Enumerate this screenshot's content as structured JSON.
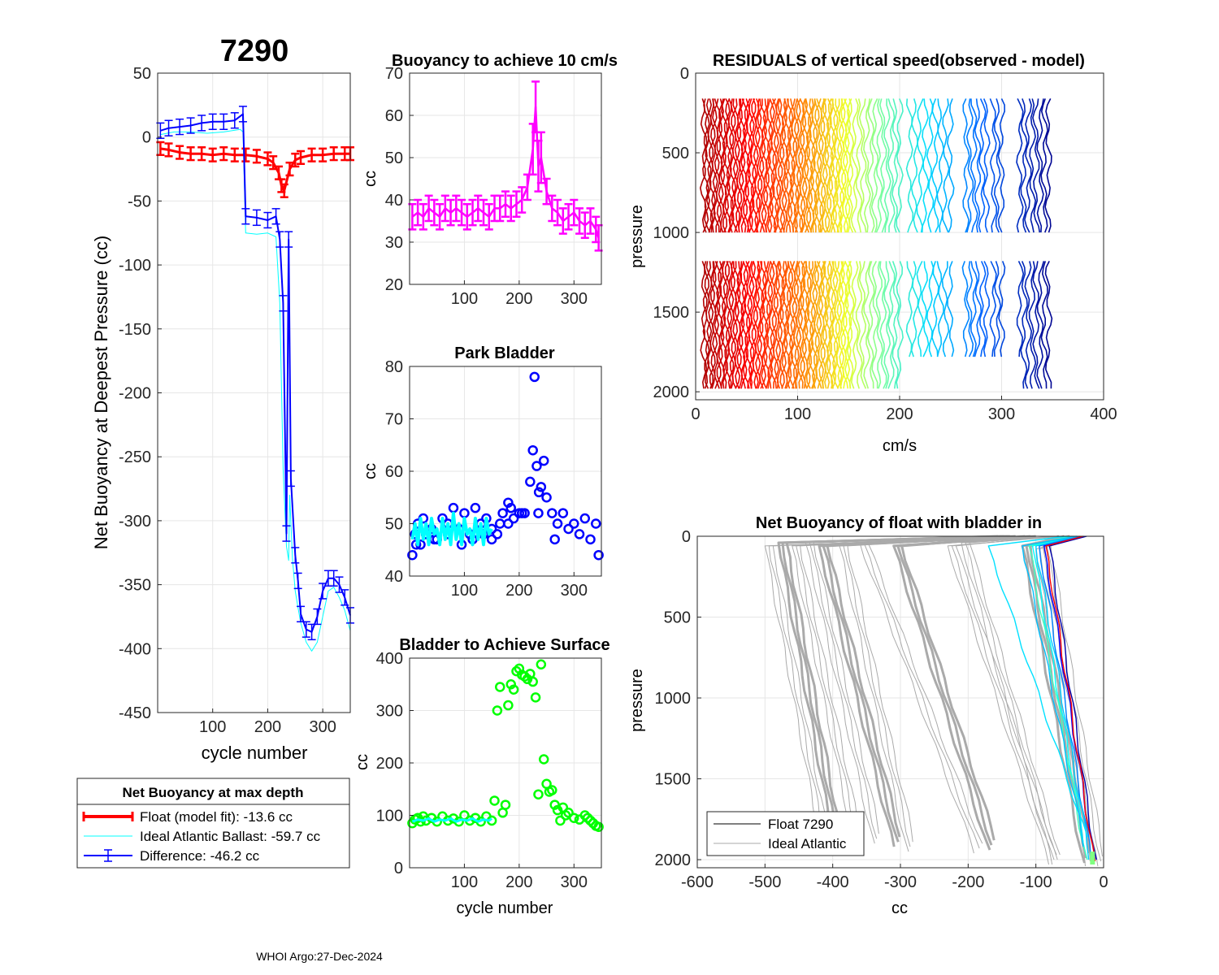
{
  "figure": {
    "float_id": "7290",
    "footer": "WHOI Argo:27-Dec-2024"
  },
  "colors": {
    "float_fit": "#ff0000",
    "ideal": "#00ffff",
    "difference": "#0000ff",
    "buoyancy": "#ff00ff",
    "park": "#0000ff",
    "bladder": "#00ff00",
    "ideal_gray": "#aaaaaa",
    "float_black": "#000000"
  },
  "chart_data": [
    {
      "id": "net-buoyancy",
      "type": "line",
      "title": "7290",
      "xlabel": "cycle number",
      "ylabel": "Net Buoyancy at Deepest Pressure (cc)",
      "xlim": [
        0,
        350
      ],
      "ylim": [
        -450,
        50
      ],
      "xticks": [
        100,
        200,
        300
      ],
      "yticks": [
        50,
        0,
        -50,
        -100,
        -150,
        -200,
        -250,
        -300,
        -350,
        -400,
        -450
      ],
      "grid": true,
      "legend": {
        "title": "Net Buoyancy at max depth",
        "entries": [
          "Float (model fit): -13.6 cc",
          "Ideal Atlantic Ballast: -59.7 cc",
          "Difference: -46.2 cc"
        ]
      },
      "series": [
        {
          "name": "Float (model fit)",
          "color": "#ff0000",
          "errorbars": true,
          "x": [
            5,
            20,
            40,
            60,
            80,
            100,
            120,
            140,
            160,
            180,
            200,
            210,
            220,
            225,
            230,
            240,
            250,
            260,
            280,
            300,
            320,
            340,
            350
          ],
          "y": [
            -9,
            -10,
            -12,
            -13,
            -13,
            -14,
            -13,
            -14,
            -14,
            -15,
            -17,
            -20,
            -28,
            -38,
            -42,
            -25,
            -18,
            -16,
            -14,
            -14,
            -13,
            -13,
            -13
          ]
        },
        {
          "name": "Ideal Atlantic Ballast",
          "color": "#00ffff",
          "x": [
            5,
            30,
            60,
            90,
            120,
            150,
            155,
            160,
            180,
            200,
            215,
            222,
            228,
            234,
            238,
            240,
            245,
            250,
            255,
            260,
            270,
            280,
            290,
            300,
            310,
            320,
            330,
            340,
            350
          ],
          "y": [
            2,
            4,
            4,
            3,
            4,
            6,
            4,
            -75,
            -76,
            -75,
            -78,
            -130,
            -260,
            -320,
            -331,
            -280,
            -330,
            -355,
            -368,
            -380,
            -395,
            -402,
            -395,
            -375,
            -355,
            -352,
            -360,
            -370,
            -386
          ]
        },
        {
          "name": "Difference",
          "color": "#0000ff",
          "errorbars": true,
          "x": [
            5,
            20,
            40,
            60,
            80,
            100,
            120,
            140,
            155,
            160,
            180,
            200,
            215,
            222,
            228,
            234,
            238,
            242,
            250,
            255,
            260,
            270,
            280,
            290,
            300,
            310,
            320,
            330,
            340,
            350
          ],
          "y": [
            5,
            7,
            8,
            9,
            11,
            12,
            12,
            13,
            18,
            -62,
            -63,
            -65,
            -62,
            -80,
            -130,
            -310,
            -80,
            -267,
            -327,
            -347,
            -373,
            -385,
            -387,
            -375,
            -355,
            -345,
            -345,
            -350,
            -360,
            -374
          ]
        }
      ]
    },
    {
      "id": "buoyancy-10cms",
      "type": "scatter",
      "title": "Buoyancy to achieve 10 cm/s",
      "xlabel": "",
      "ylabel": "cc",
      "xlim": [
        0,
        350
      ],
      "ylim": [
        20,
        70
      ],
      "xticks": [
        100,
        200,
        300
      ],
      "yticks": [
        70,
        60,
        50,
        40,
        30,
        20
      ],
      "grid": true,
      "series": [
        {
          "name": "buoyancy",
          "color": "#ff00ff",
          "errorbars": true,
          "x": [
            5,
            15,
            25,
            35,
            45,
            55,
            65,
            75,
            85,
            95,
            105,
            115,
            125,
            135,
            145,
            155,
            165,
            175,
            185,
            195,
            205,
            215,
            225,
            230,
            235,
            240,
            250,
            260,
            270,
            280,
            290,
            300,
            310,
            320,
            330,
            340,
            345
          ],
          "y": [
            36,
            37,
            36,
            38,
            37,
            36,
            38,
            37,
            38,
            37,
            36,
            37,
            38,
            37,
            36,
            38,
            38,
            39,
            38,
            39,
            40,
            43,
            52,
            62,
            48,
            50,
            42,
            38,
            37,
            35,
            36,
            37,
            35,
            34,
            35,
            33,
            31
          ]
        }
      ]
    },
    {
      "id": "park-bladder",
      "type": "scatter",
      "title": "Park Bladder",
      "xlabel": "",
      "ylabel": "cc",
      "xlim": [
        0,
        350
      ],
      "ylim": [
        40,
        80
      ],
      "xticks": [
        100,
        200,
        300
      ],
      "yticks": [
        80,
        70,
        60,
        50,
        40
      ],
      "grid": true,
      "series": [
        {
          "name": "park",
          "color": "#0000ff",
          "marker": "o",
          "x": [
            5,
            10,
            15,
            20,
            25,
            30,
            40,
            50,
            60,
            70,
            80,
            90,
            100,
            110,
            120,
            130,
            140,
            150,
            160,
            170,
            180,
            185,
            190,
            200,
            210,
            220,
            225,
            228,
            232,
            236,
            240,
            245,
            250,
            260,
            265,
            270,
            280,
            290,
            300,
            310,
            320,
            330,
            340,
            345
          ],
          "y": [
            44,
            48,
            50,
            46,
            51,
            48,
            49,
            47,
            51,
            50,
            53,
            49,
            52,
            48,
            53,
            50,
            51,
            49,
            48,
            52,
            54,
            53,
            51,
            52,
            52,
            58,
            64,
            78,
            61,
            56,
            57,
            62,
            55,
            52,
            47,
            50,
            52,
            49,
            50,
            48,
            51,
            47,
            50,
            44
          ]
        },
        {
          "name": "park-lower",
          "color": "#0000ff",
          "marker": "o",
          "x": [
            12,
            30,
            45,
            70,
            95,
            115,
            135,
            150,
            165,
            180,
            205,
            235
          ],
          "y": [
            46,
            48,
            47,
            48,
            46,
            47,
            48,
            47,
            50,
            50,
            52,
            52
          ]
        },
        {
          "name": "park-trace",
          "color": "#00ffff",
          "marker": "line",
          "x": [
            5,
            10,
            15,
            20,
            25,
            30,
            35,
            40,
            45,
            50,
            55,
            60,
            65,
            70,
            75,
            80,
            85,
            90,
            95,
            100,
            105,
            110,
            115,
            120,
            125,
            130,
            135,
            140,
            145,
            150
          ],
          "y": [
            47,
            50,
            46,
            51,
            47,
            50,
            46,
            51,
            48,
            49,
            46,
            51,
            47,
            50,
            46,
            52,
            47,
            50,
            46,
            51,
            48,
            49,
            46,
            51,
            47,
            50,
            46,
            51,
            48,
            49
          ]
        }
      ]
    },
    {
      "id": "bladder-surface",
      "type": "scatter",
      "title": "Bladder to Achieve Surface",
      "xlabel": "cycle number",
      "ylabel": "cc",
      "xlim": [
        0,
        350
      ],
      "ylim": [
        0,
        400
      ],
      "xticks": [
        100,
        200,
        300
      ],
      "yticks": [
        400,
        300,
        200,
        100,
        0
      ],
      "grid": true,
      "series": [
        {
          "name": "bladder",
          "color": "#00ff00",
          "marker": "o",
          "x": [
            5,
            10,
            15,
            20,
            25,
            30,
            40,
            50,
            60,
            70,
            80,
            90,
            100,
            110,
            120,
            130,
            140,
            150,
            155,
            160,
            165,
            170,
            175,
            180,
            185,
            190,
            195,
            200,
            205,
            210,
            215,
            220,
            225,
            230,
            235,
            240,
            245,
            250,
            255,
            260,
            265,
            270,
            275,
            280,
            285,
            290,
            300,
            310,
            320,
            325,
            330,
            335,
            340,
            345
          ],
          "y": [
            85,
            92,
            95,
            88,
            98,
            90,
            95,
            88,
            98,
            90,
            94,
            88,
            100,
            90,
            95,
            88,
            98,
            90,
            128,
            300,
            345,
            105,
            120,
            310,
            350,
            340,
            375,
            380,
            368,
            365,
            360,
            370,
            355,
            325,
            140,
            388,
            207,
            160,
            145,
            148,
            120,
            110,
            90,
            115,
            100,
            105,
            95,
            92,
            100,
            95,
            90,
            85,
            80,
            78
          ]
        },
        {
          "name": "bladder-trace",
          "color": "#00ffff",
          "marker": "line",
          "x": [
            5,
            15,
            25,
            35,
            45,
            55,
            65,
            75,
            85,
            95,
            105,
            115,
            125,
            135,
            145,
            150
          ],
          "y": [
            88,
            92,
            90,
            94,
            88,
            92,
            90,
            94,
            88,
            92,
            90,
            94,
            88,
            92,
            90,
            94
          ]
        }
      ]
    },
    {
      "id": "residuals",
      "type": "line",
      "title": "RESIDUALS of vertical speed(observed - model)",
      "xlabel": "cm/s",
      "ylabel": "pressure",
      "xlim": [
        0,
        400
      ],
      "ylim": [
        0,
        2050
      ],
      "y_reversed": true,
      "xticks": [
        0,
        100,
        200,
        300,
        400
      ],
      "yticks": [
        0,
        500,
        1000,
        1500,
        2000
      ],
      "grid": true,
      "groups": [
        {
          "p_top": 160,
          "p_bottom": 1020,
          "x_end": 348
        },
        {
          "p_top": 1180,
          "p_bottom": 2000,
          "x_end": 348
        }
      ],
      "note": "one vertical residual profile per cycle, offset by cycle number; colored jet red (early) to dark blue (late)"
    },
    {
      "id": "net-buoyancy-bladder-in",
      "type": "line",
      "title": "Net Buoyancy of float with bladder in",
      "xlabel": "cc",
      "ylabel": "pressure",
      "xlim": [
        -600,
        0
      ],
      "ylim": [
        0,
        2050
      ],
      "y_reversed": true,
      "xticks": [
        -600,
        -500,
        -400,
        -300,
        -200,
        -100,
        0
      ],
      "yticks": [
        0,
        500,
        1000,
        1500,
        2000
      ],
      "grid": true,
      "legend": {
        "entries": [
          "Float 7290",
          "Ideal Atlantic"
        ]
      },
      "ideal_profiles": [
        {
          "x_top": -120,
          "knee_p": 60,
          "x_knee": -500,
          "x_bottom": -420,
          "p_end": 1850
        },
        {
          "x_top": -140,
          "knee_p": 40,
          "x_knee": -480,
          "x_bottom": -400,
          "p_end": 1870
        },
        {
          "x_top": -150,
          "knee_p": 60,
          "x_knee": -460,
          "x_bottom": -370,
          "p_end": 1880
        },
        {
          "x_top": -150,
          "knee_p": 40,
          "x_knee": -440,
          "x_bottom": -340,
          "p_end": 1900
        },
        {
          "x_top": -130,
          "knee_p": 60,
          "x_knee": -420,
          "x_bottom": -310,
          "p_end": 1920
        },
        {
          "x_top": -100,
          "knee_p": 60,
          "x_knee": -390,
          "x_bottom": -290,
          "p_end": 1950
        },
        {
          "x_top": -110,
          "knee_p": 40,
          "x_knee": -360,
          "x_bottom": -190,
          "p_end": 1960
        },
        {
          "x_top": -100,
          "knee_p": 60,
          "x_knee": -310,
          "x_bottom": -170,
          "p_end": 1940
        },
        {
          "x_top": -60,
          "knee_p": 60,
          "x_knee": -230,
          "x_bottom": -80,
          "p_end": 2030
        },
        {
          "x_top": -60,
          "knee_p": 40,
          "x_knee": -210,
          "x_bottom": -75,
          "p_end": 2030
        },
        {
          "x_top": -50,
          "knee_p": 60,
          "x_knee": -120,
          "x_bottom": -30,
          "p_end": 2020
        },
        {
          "x_top": -40,
          "knee_p": 80,
          "x_knee": -100,
          "x_bottom": -25,
          "p_end": 2040
        },
        {
          "x_top": -30,
          "knee_p": 60,
          "x_knee": -90,
          "x_bottom": -10,
          "p_end": 2040
        }
      ],
      "float_profiles": [
        {
          "x_top": -25,
          "knee_p": 60,
          "x_knee": -80,
          "x_bottom": -12,
          "p_end": 2000,
          "color": "#0000aa"
        },
        {
          "x_top": -30,
          "knee_p": 60,
          "x_knee": -88,
          "x_bottom": -14,
          "p_end": 2000,
          "color": "#0000ff"
        },
        {
          "x_top": -35,
          "knee_p": 60,
          "x_knee": -95,
          "x_bottom": -18,
          "p_end": 2000,
          "color": "#0080ff"
        },
        {
          "x_top": -40,
          "knee_p": 60,
          "x_knee": -100,
          "x_bottom": -20,
          "p_end": 2000,
          "color": "#00ccff"
        },
        {
          "x_top": -45,
          "knee_p": 60,
          "x_knee": -105,
          "x_bottom": -24,
          "p_end": 2000,
          "color": "#00ffff"
        },
        {
          "x_top": -50,
          "knee_p": 60,
          "x_knee": -110,
          "x_bottom": -26,
          "p_end": 2000,
          "color": "#40ffbf"
        },
        {
          "x_top": -55,
          "knee_p": 60,
          "x_knee": -170,
          "x_bottom": -25,
          "p_end": 1860,
          "color": "#00e0ff"
        },
        {
          "x_top": -40,
          "knee_p": 60,
          "x_knee": -120,
          "x_bottom": -28,
          "p_end": 1920,
          "color": "#00c0ff"
        },
        {
          "x_top": -30,
          "knee_p": 60,
          "x_knee": -85,
          "x_bottom": -14,
          "p_end": 2010,
          "color": "#ff0000"
        }
      ]
    }
  ]
}
